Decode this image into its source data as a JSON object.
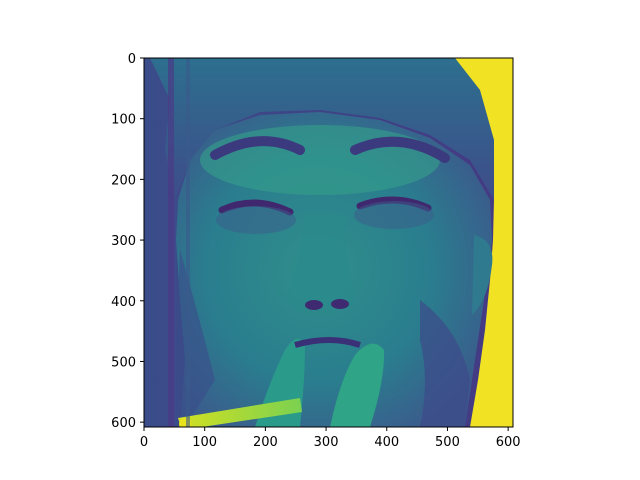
{
  "image": {
    "description_colormap": "viridis",
    "colors": {
      "dark": "#44307a",
      "mid": "#2a8f8a",
      "light": "#35b779",
      "bright": "#f2e224"
    }
  },
  "axes": {
    "x_ticks": [
      {
        "value": 0,
        "label": "0"
      },
      {
        "value": 100,
        "label": "100"
      },
      {
        "value": 200,
        "label": "200"
      },
      {
        "value": 300,
        "label": "300"
      },
      {
        "value": 400,
        "label": "400"
      },
      {
        "value": 500,
        "label": "500"
      },
      {
        "value": 600,
        "label": "600"
      }
    ],
    "y_ticks": [
      {
        "value": 0,
        "label": "0"
      },
      {
        "value": 100,
        "label": "100"
      },
      {
        "value": 200,
        "label": "200"
      },
      {
        "value": 300,
        "label": "300"
      },
      {
        "value": 400,
        "label": "400"
      },
      {
        "value": 500,
        "label": "500"
      },
      {
        "value": 600,
        "label": "600"
      }
    ],
    "x_range": [
      0,
      608
    ],
    "y_range": [
      0,
      608
    ]
  }
}
